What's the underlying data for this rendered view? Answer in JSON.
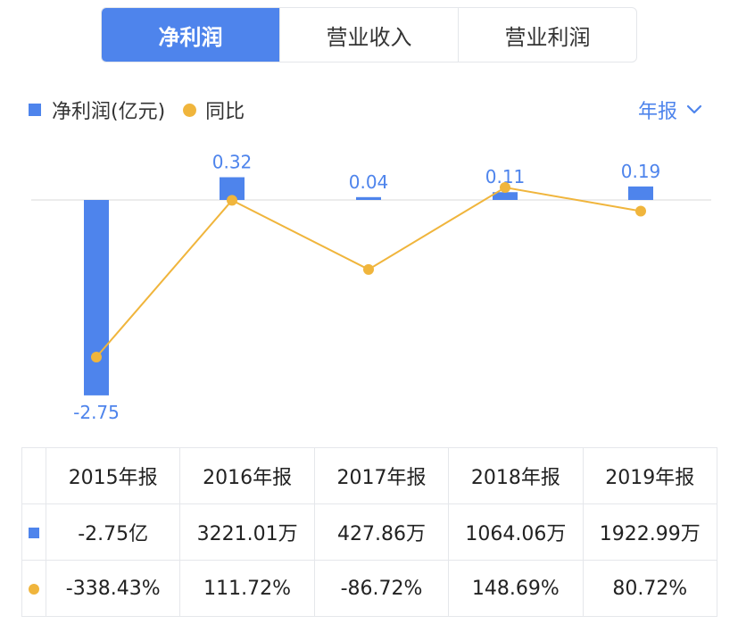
{
  "tabs": [
    {
      "label": "净利润",
      "active": true
    },
    {
      "label": "营业收入",
      "active": false
    },
    {
      "label": "营业利润",
      "active": false
    }
  ],
  "legend": {
    "bar_label": "净利润(亿元)",
    "line_label": "同比"
  },
  "period_select": {
    "value": "年报",
    "icon": "chevron-down-icon"
  },
  "colors": {
    "accent": "#4e84ec",
    "bar": "#4e84ec",
    "line": "#f0b53c",
    "positive": "#e0454a",
    "negative": "#25a56a"
  },
  "chart_data": {
    "type": "bar",
    "categories": [
      "2015年报",
      "2016年报",
      "2017年报",
      "2018年报",
      "2019年报"
    ],
    "series": [
      {
        "name": "净利润(亿元)",
        "type": "bar",
        "values": [
          -2.75,
          0.32,
          0.04,
          0.11,
          0.19
        ],
        "labels": [
          "-2.75",
          "0.32",
          "0.04",
          "0.11",
          "0.19"
        ]
      },
      {
        "name": "同比",
        "type": "line",
        "values": [
          -338.43,
          111.72,
          -86.72,
          148.69,
          80.72
        ]
      }
    ]
  },
  "table": {
    "headers": [
      "2015年报",
      "2016年报",
      "2017年报",
      "2018年报",
      "2019年报"
    ],
    "rows": [
      {
        "marker": "bar",
        "cells": [
          "-2.75亿",
          "3221.01万",
          "427.86万",
          "1064.06万",
          "1922.99万"
        ]
      },
      {
        "marker": "dot",
        "cells": [
          "-338.43%",
          "111.72%",
          "-86.72%",
          "148.69%",
          "80.72%"
        ],
        "signs": [
          "neg",
          "pos",
          "neg",
          "pos",
          "pos"
        ]
      }
    ]
  }
}
